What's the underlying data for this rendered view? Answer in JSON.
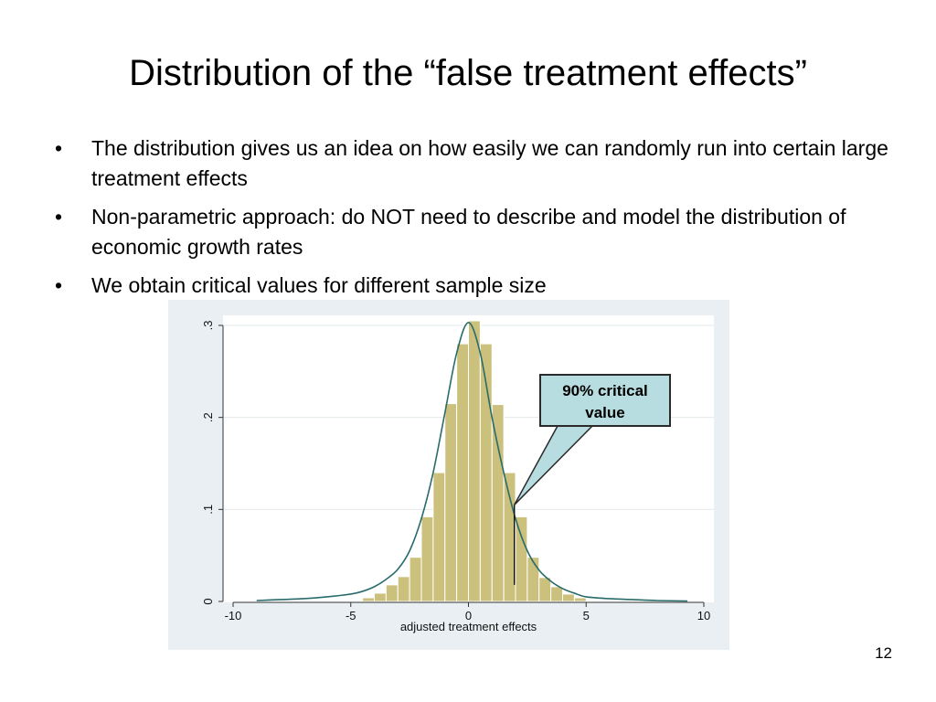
{
  "slide": {
    "title": "Distribution of the “false treatment effects”",
    "bullet_char": "•",
    "bullets": [
      "The distribution gives us an idea on how easily we can randomly run into certain large treatment effects",
      "Non-parametric approach:  do NOT need to describe and model the distribution of economic growth rates",
      "We obtain critical values for different sample size"
    ],
    "callout": "90% critical value",
    "page_number": "12"
  },
  "colors": {
    "bar_fill": "#cbc07c",
    "bar_stroke": "#ffffff",
    "curve": "#2a6b6b",
    "plot_bg": "#ffffff",
    "outer_bg": "#e9eff2",
    "grid": "#e3e8ea",
    "callout_fill": "#b8dde0"
  },
  "chart_data": {
    "type": "bar",
    "title": "",
    "xlabel": "adjusted treatment effects",
    "ylabel": "",
    "xlim": [
      -10.5,
      10.5
    ],
    "ylim": [
      0,
      0.3
    ],
    "xticks": [
      -10,
      -5,
      0,
      5,
      10
    ],
    "xtick_labels": [
      "-10",
      "-5",
      "0",
      "5",
      "10"
    ],
    "yticks": [
      0,
      0.1,
      0.2,
      0.3
    ],
    "ytick_labels": [
      "0",
      ".1",
      ".2",
      ".3"
    ],
    "grid": true,
    "histogram": {
      "bin_width": 0.5,
      "bin_starts": [
        -4.5,
        -4,
        -3.5,
        -3,
        -2.5,
        -2,
        -1.5,
        -1,
        -0.5,
        0,
        0.5,
        1,
        1.5,
        2,
        2.5,
        3,
        3.5,
        4,
        4.5
      ],
      "density": [
        0.004,
        0.009,
        0.018,
        0.027,
        0.048,
        0.092,
        0.14,
        0.215,
        0.28,
        0.305,
        0.28,
        0.214,
        0.14,
        0.092,
        0.048,
        0.026,
        0.016,
        0.008,
        0.004
      ]
    },
    "density_curve": {
      "x": [
        -9,
        -8,
        -7,
        -6,
        -5,
        -4.5,
        -4,
        -3.5,
        -3,
        -2.5,
        -2,
        -1.5,
        -1,
        -0.5,
        0,
        0.5,
        1,
        1.5,
        2,
        2.5,
        3,
        3.5,
        4,
        4.5,
        5,
        6,
        7,
        8,
        9.3
      ],
      "y": [
        0.001,
        0.002,
        0.003,
        0.005,
        0.008,
        0.011,
        0.016,
        0.024,
        0.035,
        0.055,
        0.09,
        0.14,
        0.205,
        0.27,
        0.303,
        0.27,
        0.2,
        0.14,
        0.09,
        0.055,
        0.034,
        0.022,
        0.014,
        0.009,
        0.005,
        0.003,
        0.002,
        0.001,
        0.0005
      ]
    },
    "critical_value_x": 1.95,
    "critical_value_line_y": [
      0.018,
      0.105
    ]
  }
}
